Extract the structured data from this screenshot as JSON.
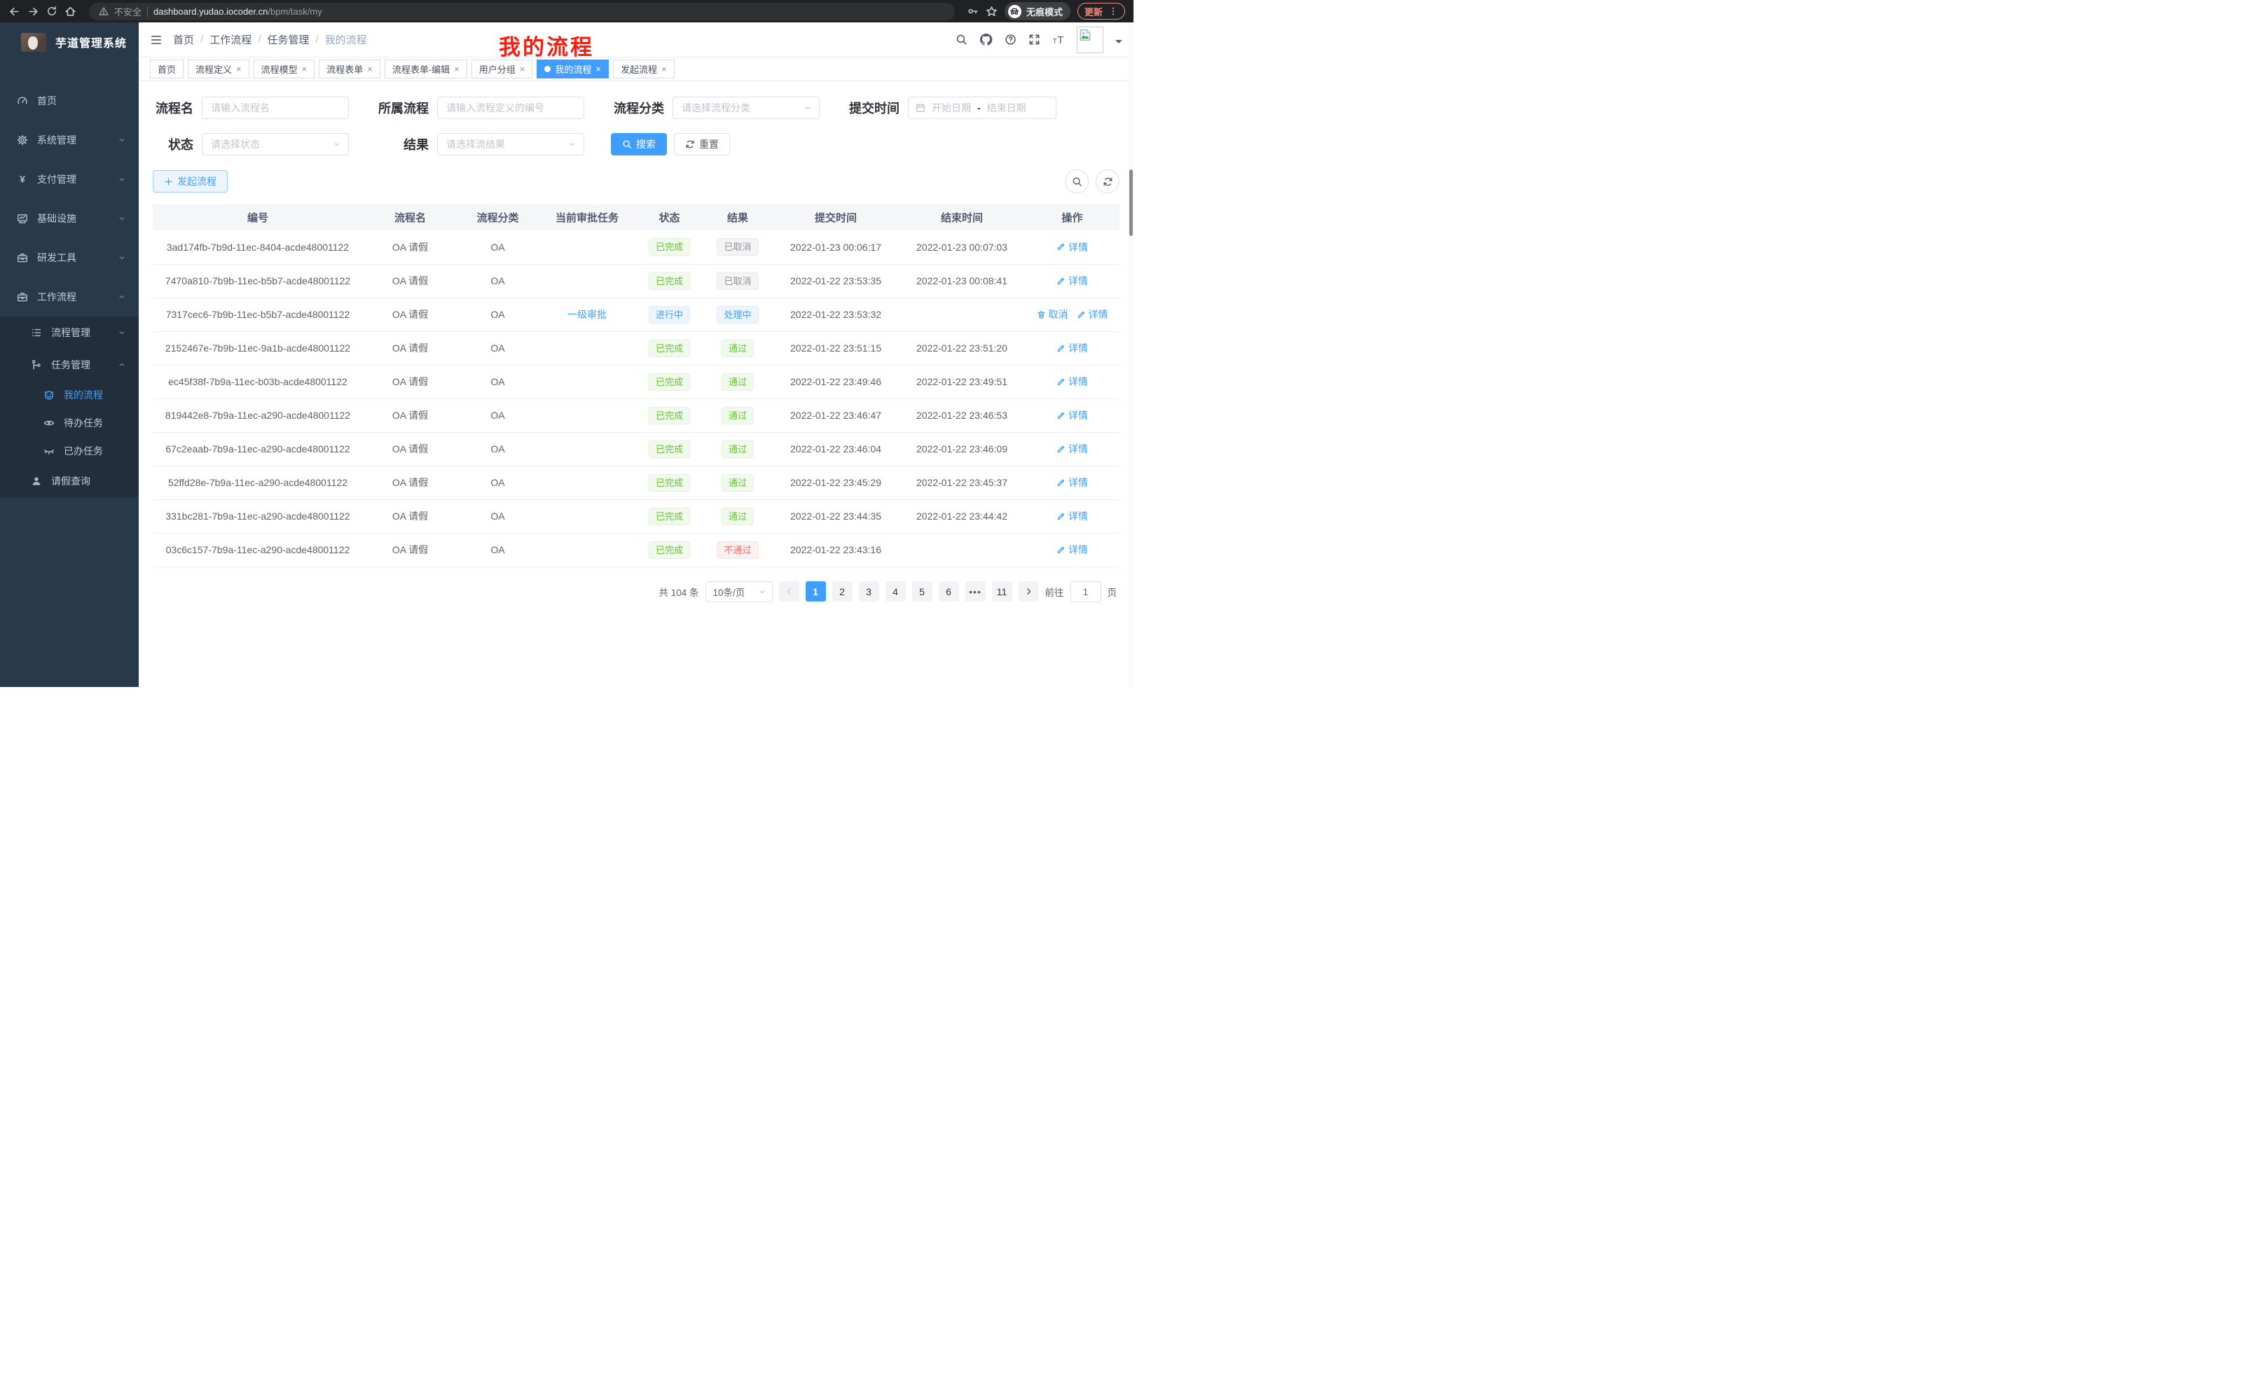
{
  "browser": {
    "security_label": "不安全",
    "url_host": "dashboard.yudao.iocoder.cn",
    "url_path": "/bpm/task/my",
    "incognito_label": "无痕模式",
    "update_label": "更新"
  },
  "colors": {
    "accent": "#409eff",
    "success": "#67c23a",
    "danger": "#f56c6c",
    "info": "#909399",
    "annotation_red": "#f81d10",
    "chrome_update": "#f28b82",
    "sidebar_bg": "#28394a",
    "submenu_bg": "#212f3d"
  },
  "sidebar": {
    "app_title": "芋道管理系统",
    "items": [
      {
        "key": "home",
        "icon": "gauge",
        "label": "首页"
      },
      {
        "key": "system",
        "icon": "gear",
        "label": "系统管理",
        "chevron": "down"
      },
      {
        "key": "payment",
        "icon": "yen",
        "label": "支付管理",
        "chevron": "down"
      },
      {
        "key": "infra",
        "icon": "monitor",
        "label": "基础设施",
        "chevron": "down"
      },
      {
        "key": "devtools",
        "icon": "briefcase",
        "label": "研发工具",
        "chevron": "down"
      },
      {
        "key": "workflow",
        "icon": "briefcase",
        "label": "工作流程",
        "chevron": "up",
        "children": [
          {
            "key": "process-mgmt",
            "icon": "list",
            "label": "流程管理",
            "chevron": "down"
          },
          {
            "key": "task-mgmt",
            "icon": "flow",
            "label": "任务管理",
            "chevron": "up",
            "children": [
              {
                "key": "my-process",
                "icon": "robot",
                "label": "我的流程",
                "active": true
              },
              {
                "key": "todo-tasks",
                "icon": "eye",
                "label": "待办任务"
              },
              {
                "key": "done-tasks",
                "icon": "eyeclosed",
                "label": "已办任务"
              }
            ]
          },
          {
            "key": "leave-query",
            "icon": "user",
            "label": "请假查询"
          }
        ]
      }
    ]
  },
  "breadcrumb": {
    "separator": "/",
    "items": [
      "首页",
      "工作流程",
      "任务管理",
      "我的流程"
    ]
  },
  "annotation": {
    "text": "我的流程"
  },
  "tabs": [
    {
      "key": "home",
      "label": "首页",
      "closable": false
    },
    {
      "key": "process-definition",
      "label": "流程定义",
      "closable": true
    },
    {
      "key": "process-model",
      "label": "流程模型",
      "closable": true
    },
    {
      "key": "process-form",
      "label": "流程表单",
      "closable": true
    },
    {
      "key": "process-form-edit",
      "label": "流程表单-编辑",
      "closable": true
    },
    {
      "key": "user-group",
      "label": "用户分组",
      "closable": true
    },
    {
      "key": "my-process",
      "label": "我的流程",
      "closable": true,
      "active": true
    },
    {
      "key": "start-process",
      "label": "发起流程",
      "closable": true
    }
  ],
  "filters": {
    "name_label": "流程名",
    "name_placeholder": "请输入流程名",
    "def_label": "所属流程",
    "def_placeholder": "请输入流程定义的编号",
    "category_label": "流程分类",
    "category_placeholder": "请选择流程分类",
    "time_label": "提交时间",
    "date_start": "开始日期",
    "date_separator": "-",
    "date_end": "结束日期",
    "status_label": "状态",
    "status_placeholder": "请选择状态",
    "result_label": "结果",
    "result_placeholder": "请选择流结果",
    "search_label": "搜索",
    "reset_label": "重置"
  },
  "toolbar": {
    "create_label": "发起流程"
  },
  "table": {
    "headers": [
      "编号",
      "流程名",
      "流程分类",
      "当前审批任务",
      "状态",
      "结果",
      "提交时间",
      "结束时间",
      "操作"
    ],
    "detail_label": "详情",
    "cancel_label": "取消",
    "rows": [
      {
        "id": "3ad174fb-7b9d-11ec-8404-acde48001122",
        "name": "OA 请假",
        "category": "OA",
        "task": "",
        "status": "已完成",
        "status_type": "success",
        "result": "已取消",
        "result_type": "info",
        "submit_time": "2022-01-23 00:06:17",
        "end_time": "2022-01-23 00:07:03",
        "cancellable": false
      },
      {
        "id": "7470a810-7b9b-11ec-b5b7-acde48001122",
        "name": "OA 请假",
        "category": "OA",
        "task": "",
        "status": "已完成",
        "status_type": "success",
        "result": "已取消",
        "result_type": "info",
        "submit_time": "2022-01-22 23:53:35",
        "end_time": "2022-01-23 00:08:41",
        "cancellable": false
      },
      {
        "id": "7317cec6-7b9b-11ec-b5b7-acde48001122",
        "name": "OA 请假",
        "category": "OA",
        "task": "一级审批",
        "status": "进行中",
        "status_type": "primary",
        "result": "处理中",
        "result_type": "primary",
        "submit_time": "2022-01-22 23:53:32",
        "end_time": "",
        "cancellable": true
      },
      {
        "id": "2152467e-7b9b-11ec-9a1b-acde48001122",
        "name": "OA 请假",
        "category": "OA",
        "task": "",
        "status": "已完成",
        "status_type": "success",
        "result": "通过",
        "result_type": "success",
        "submit_time": "2022-01-22 23:51:15",
        "end_time": "2022-01-22 23:51:20",
        "cancellable": false
      },
      {
        "id": "ec45f38f-7b9a-11ec-b03b-acde48001122",
        "name": "OA 请假",
        "category": "OA",
        "task": "",
        "status": "已完成",
        "status_type": "success",
        "result": "通过",
        "result_type": "success",
        "submit_time": "2022-01-22 23:49:46",
        "end_time": "2022-01-22 23:49:51",
        "cancellable": false
      },
      {
        "id": "819442e8-7b9a-11ec-a290-acde48001122",
        "name": "OA 请假",
        "category": "OA",
        "task": "",
        "status": "已完成",
        "status_type": "success",
        "result": "通过",
        "result_type": "success",
        "submit_time": "2022-01-22 23:46:47",
        "end_time": "2022-01-22 23:46:53",
        "cancellable": false
      },
      {
        "id": "67c2eaab-7b9a-11ec-a290-acde48001122",
        "name": "OA 请假",
        "category": "OA",
        "task": "",
        "status": "已完成",
        "status_type": "success",
        "result": "通过",
        "result_type": "success",
        "submit_time": "2022-01-22 23:46:04",
        "end_time": "2022-01-22 23:46:09",
        "cancellable": false
      },
      {
        "id": "52ffd28e-7b9a-11ec-a290-acde48001122",
        "name": "OA 请假",
        "category": "OA",
        "task": "",
        "status": "已完成",
        "status_type": "success",
        "result": "通过",
        "result_type": "success",
        "submit_time": "2022-01-22 23:45:29",
        "end_time": "2022-01-22 23:45:37",
        "cancellable": false
      },
      {
        "id": "331bc281-7b9a-11ec-a290-acde48001122",
        "name": "OA 请假",
        "category": "OA",
        "task": "",
        "status": "已完成",
        "status_type": "success",
        "result": "通过",
        "result_type": "success",
        "submit_time": "2022-01-22 23:44:35",
        "end_time": "2022-01-22 23:44:42",
        "cancellable": false
      },
      {
        "id": "03c6c157-7b9a-11ec-a290-acde48001122",
        "name": "OA 请假",
        "category": "OA",
        "task": "",
        "status": "已完成",
        "status_type": "success",
        "result": "不通过",
        "result_type": "danger",
        "submit_time": "2022-01-22 23:43:16",
        "end_time": "",
        "cancellable": false
      }
    ]
  },
  "pagination": {
    "total_label": "共 104 条",
    "page_size": "10条/页",
    "pages": [
      {
        "label": "1",
        "active": true
      },
      {
        "label": "2"
      },
      {
        "label": "3"
      },
      {
        "label": "4"
      },
      {
        "label": "5"
      },
      {
        "label": "6"
      },
      {
        "label": "•••",
        "ellipsis": true
      },
      {
        "label": "11"
      }
    ],
    "goto_label": "前往",
    "goto_value": "1",
    "page_unit": "页"
  }
}
